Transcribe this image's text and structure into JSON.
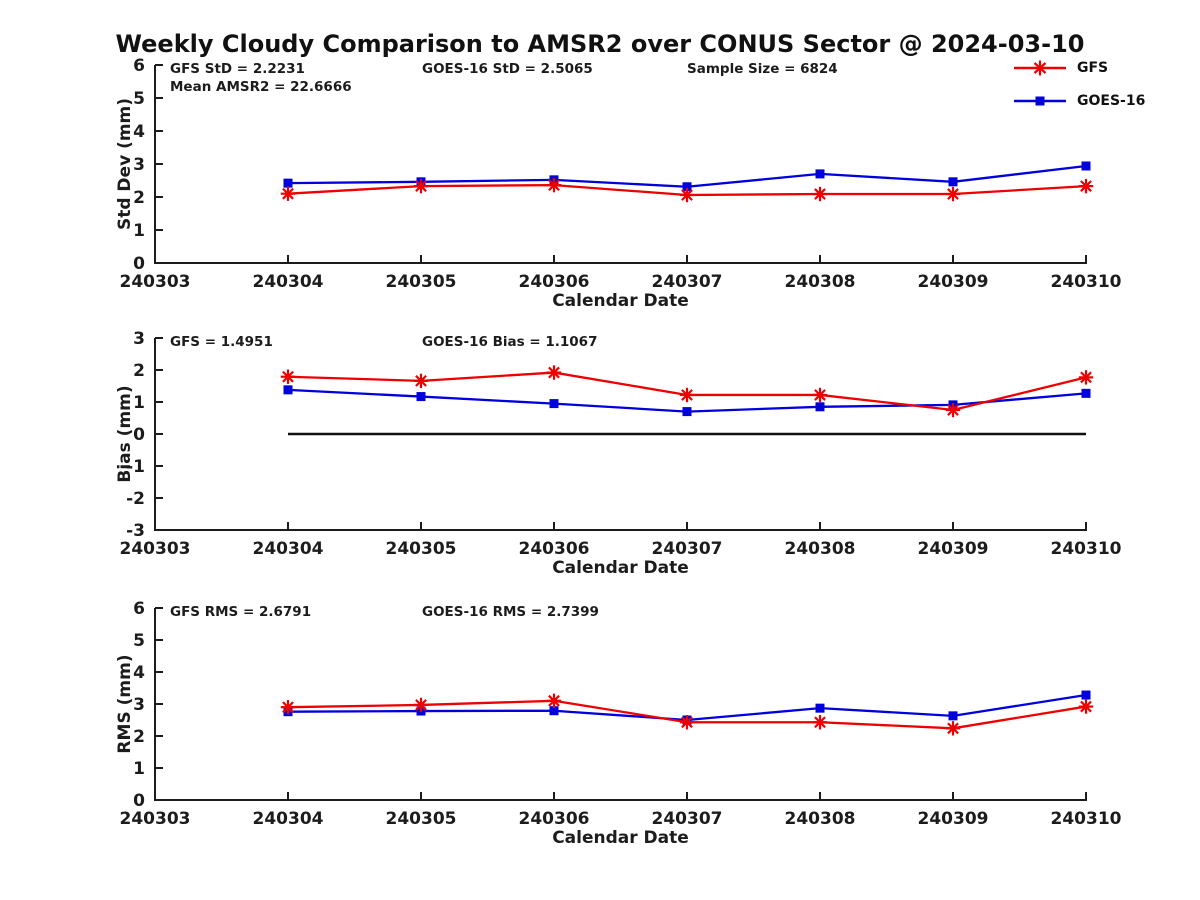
{
  "title": "Weekly Cloudy Comparison to AMSR2 over CONUS Sector @ 2024-03-10",
  "colors": {
    "gfs": "#ee0000",
    "goes16": "#0000dd",
    "axis": "#1c1c1c",
    "zero_line": "#111111"
  },
  "legend": {
    "items": [
      {
        "label": "GFS",
        "color": "#ee0000",
        "marker": "asterisk"
      },
      {
        "label": "GOES-16",
        "color": "#0000dd",
        "marker": "square"
      }
    ]
  },
  "chart_data": [
    {
      "id": "stddev",
      "type": "line",
      "ylabel": "Std Dev (mm)",
      "xlabel": "Calendar Date",
      "ylim": [
        0,
        6
      ],
      "yticks": [
        0,
        1,
        2,
        3,
        4,
        5,
        6
      ],
      "categories": [
        "240303",
        "240304",
        "240305",
        "240306",
        "240307",
        "240308",
        "240309",
        "240310"
      ],
      "x_start_index": 1,
      "series": [
        {
          "name": "GOES-16",
          "color": "#0000dd",
          "marker": "square",
          "values": [
            2.42,
            2.46,
            2.52,
            2.31,
            2.7,
            2.46,
            2.94
          ]
        },
        {
          "name": "GFS",
          "color": "#ee0000",
          "marker": "asterisk",
          "values": [
            2.1,
            2.33,
            2.36,
            2.06,
            2.09,
            2.09,
            2.33
          ]
        }
      ],
      "annotations": [
        {
          "text": "GFS StD = 2.2231",
          "col": 0,
          "row": 0
        },
        {
          "text": "Mean AMSR2 = 22.6666",
          "col": 0,
          "row": 1
        },
        {
          "text": "GOES-16 StD = 2.5065",
          "col": 1,
          "row": 0
        },
        {
          "text": "Sample Size = 6824",
          "col": 2,
          "row": 0
        }
      ]
    },
    {
      "id": "bias",
      "type": "line",
      "ylabel": "Bias (mm)",
      "xlabel": "Calendar Date",
      "ylim": [
        -3,
        3
      ],
      "yticks": [
        -3,
        -2,
        -1,
        0,
        1,
        2,
        3
      ],
      "categories": [
        "240303",
        "240304",
        "240305",
        "240306",
        "240307",
        "240308",
        "240309",
        "240310"
      ],
      "x_start_index": 1,
      "zero_line": {
        "y": 0,
        "from": "240304",
        "to": "240310"
      },
      "series": [
        {
          "name": "GOES-16",
          "color": "#0000dd",
          "marker": "square",
          "values": [
            1.38,
            1.17,
            0.95,
            0.7,
            0.85,
            0.91,
            1.27
          ]
        },
        {
          "name": "GFS",
          "color": "#ee0000",
          "marker": "asterisk",
          "values": [
            1.79,
            1.66,
            1.92,
            1.22,
            1.22,
            0.75,
            1.77
          ]
        }
      ],
      "annotations": [
        {
          "text": "GFS = 1.4951",
          "col": 0,
          "row": 0
        },
        {
          "text": "GOES-16 Bias  = 1.1067",
          "col": 1,
          "row": 0
        }
      ]
    },
    {
      "id": "rms",
      "type": "line",
      "ylabel": "RMS (mm)",
      "xlabel": "Calendar Date",
      "ylim": [
        0,
        6
      ],
      "yticks": [
        0,
        1,
        2,
        3,
        4,
        5,
        6
      ],
      "categories": [
        "240303",
        "240304",
        "240305",
        "240306",
        "240307",
        "240308",
        "240309",
        "240310"
      ],
      "x_start_index": 1,
      "series": [
        {
          "name": "GOES-16",
          "color": "#0000dd",
          "marker": "square",
          "values": [
            2.76,
            2.78,
            2.79,
            2.5,
            2.87,
            2.63,
            3.28
          ]
        },
        {
          "name": "GFS",
          "color": "#ee0000",
          "marker": "asterisk",
          "values": [
            2.9,
            2.97,
            3.1,
            2.43,
            2.43,
            2.24,
            2.92
          ]
        }
      ],
      "annotations": [
        {
          "text": "GFS RMS = 2.6791",
          "col": 0,
          "row": 0
        },
        {
          "text": "GOES-16 RMS = 2.7399",
          "col": 1,
          "row": 0
        }
      ]
    }
  ]
}
